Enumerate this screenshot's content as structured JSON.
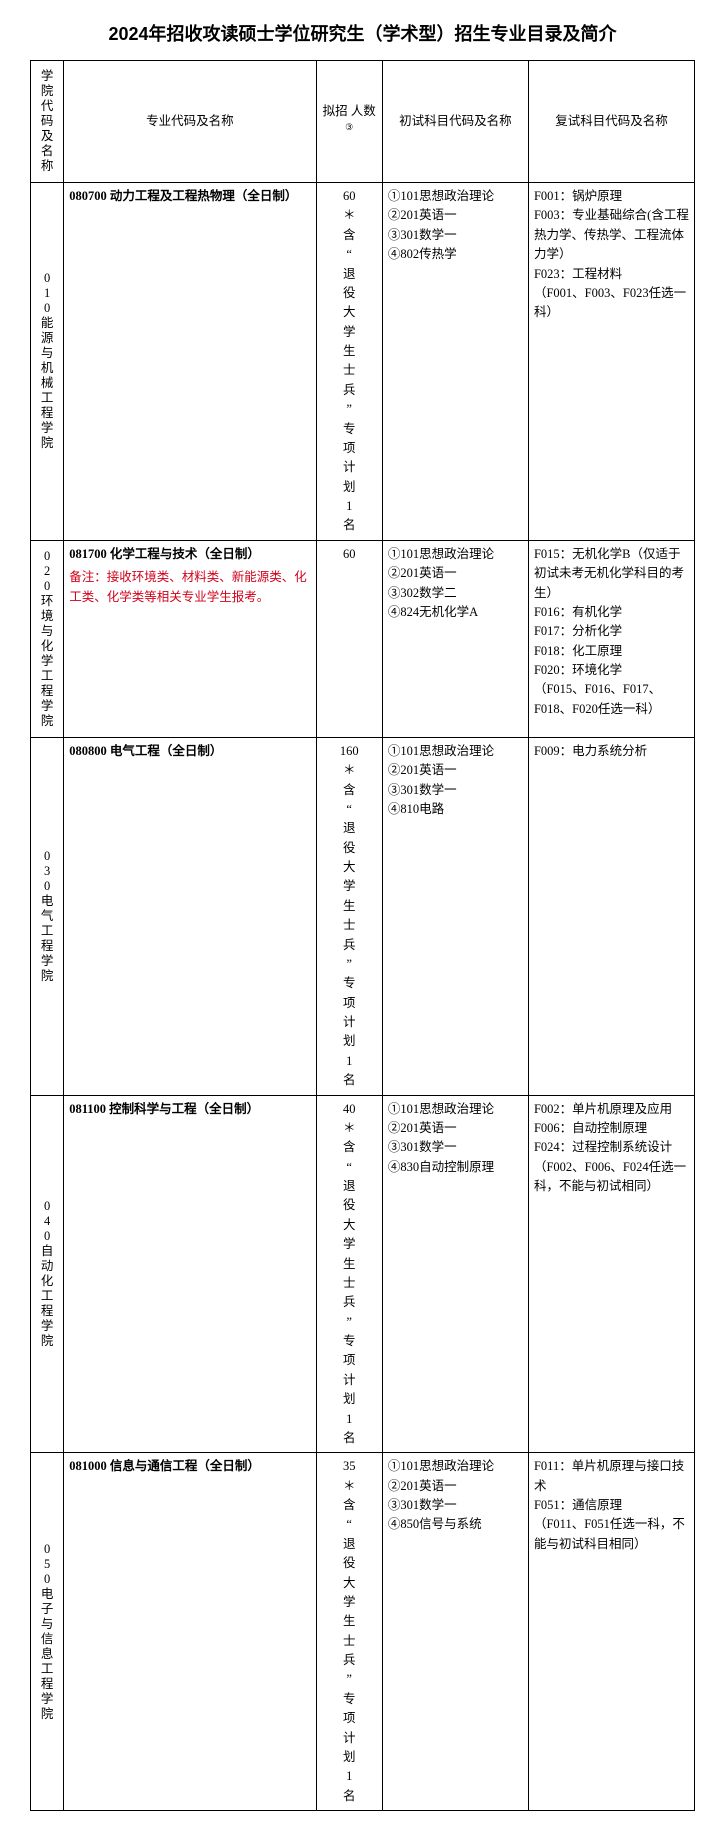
{
  "page": {
    "title": "2024年招收攻读硕士学位研究生（学术型）招生专业目录及简介"
  },
  "headers": {
    "col1": "学院代码及名称",
    "col2": "专业代码及名称",
    "col3_a": "拟招",
    "col3_b": "人数",
    "col3_sup": "③",
    "col4": "初试科目代码及名称",
    "col5": "复试科目代码及名称"
  },
  "rows": [
    {
      "school": "010能源与机械工程学院",
      "major_code": "080700",
      "major_name": "动力工程及工程热物理（全日制）",
      "major_note": "",
      "quota_num": "60",
      "quota_note": "＊含“退役大学生士兵”专项计划1名",
      "exam1": "①101思想政治理论\n②201英语一\n③301数学一\n④802传热学",
      "exam2": "F001：锅炉原理\nF003：专业基础综合(含工程热力学、传热学、工程流体力学）\nF023：工程材料\n（F001、F003、F023任选一科）"
    },
    {
      "school": "020环境与化学工程学院",
      "major_code": "081700",
      "major_name": "化学工程与技术（全日制）",
      "major_note": "备注：接收环境类、材料类、新能源类、化工类、化学类等相关专业学生报考。",
      "quota_num": "60",
      "quota_note": "",
      "exam1": "①101思想政治理论\n②201英语一\n③302数学二\n④824无机化学A",
      "exam2": "F015：无机化学B（仅适于初试未考无机化学科目的考生）\nF016：有机化学\nF017：分析化学\nF018：化工原理\nF020：环境化学\n（F015、F016、F017、F018、F020任选一科）"
    },
    {
      "school": "030电气工程学院",
      "major_code": "080800",
      "major_name": "电气工程（全日制）",
      "major_note": "",
      "quota_num": "160",
      "quota_note": "＊含“退役大学生士兵”专项计划1名",
      "exam1": "①101思想政治理论\n②201英语一\n③301数学一\n④810电路",
      "exam2": "F009：电力系统分析"
    },
    {
      "school": "040自动化工程学院",
      "major_code": "081100",
      "major_name": "控制科学与工程（全日制）",
      "major_note": "",
      "quota_num": "40",
      "quota_note": "＊含“退役大学生士兵”专项计划1名",
      "exam1": "①101思想政治理论\n②201英语一\n③301数学一\n④830自动控制原理",
      "exam2": "F002：单片机原理及应用\nF006：自动控制原理\nF024：过程控制系统设计\n（F002、F006、F024任选一科，不能与初试相同）"
    },
    {
      "school": "050电子与信息工程学院",
      "major_code": "081000",
      "major_name": "信息与通信工程（全日制）",
      "major_note": "",
      "quota_num": "35",
      "quota_note": "＊含“退役大学生士兵”专项计划1名",
      "exam1": "①101思想政治理论\n②201英语一\n③301数学一\n④850信号与系统",
      "exam2": "F011：单片机原理与接口技术\nF051：通信原理\n（F011、F051任选一科，不能与初试科目相同）"
    }
  ]
}
